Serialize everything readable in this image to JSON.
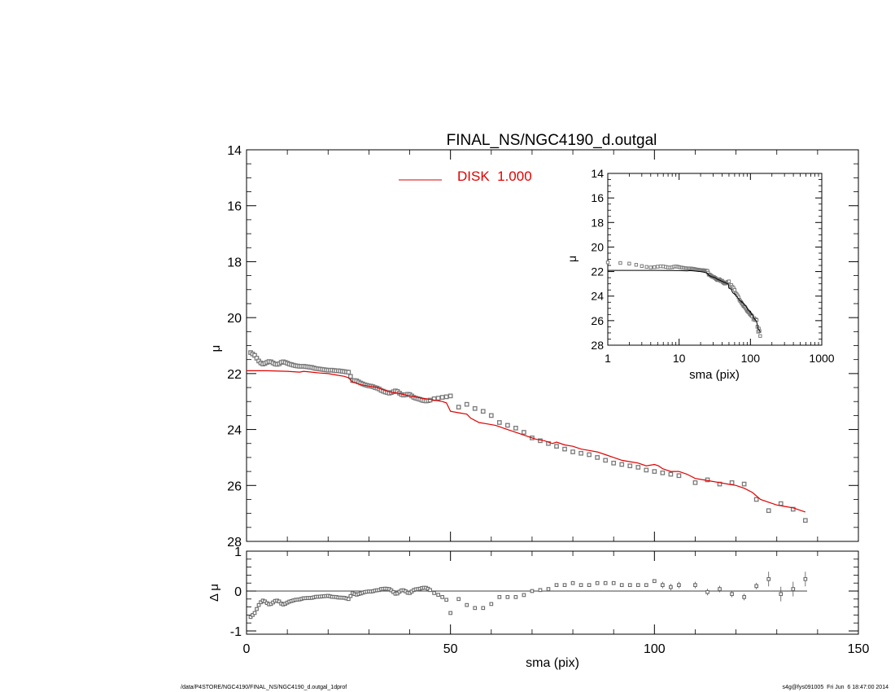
{
  "chart_data": [
    {
      "panel": "main",
      "type": "scatter",
      "title": "FINAL_NS/NGC4190_d.outgal",
      "ylabel": "μ",
      "xlim": [
        0,
        150
      ],
      "ylim": [
        28,
        14
      ],
      "yticks": [
        "14",
        "16",
        "18",
        "20",
        "22",
        "24",
        "26",
        "28"
      ],
      "legend": {
        "label": "DISK  1.000",
        "position": "top-center",
        "color": "#e00000"
      },
      "series": [
        {
          "kind": "points",
          "marker": "square",
          "color": "#7a7a7a",
          "x": [
            1,
            1.5,
            2,
            2.5,
            3,
            3.5,
            4,
            4.5,
            5,
            5.5,
            6,
            6.5,
            7,
            7.5,
            8,
            8.5,
            9,
            9.5,
            10,
            10.5,
            11,
            11.5,
            12,
            12.5,
            13,
            13.5,
            14,
            14.5,
            15,
            15.5,
            16,
            16.5,
            17,
            17.5,
            18,
            18.5,
            19,
            19.5,
            20,
            20.5,
            21,
            21.5,
            22,
            22.5,
            23,
            23.5,
            24,
            24.5,
            25,
            25.5,
            26,
            26.5,
            27,
            27.5,
            28,
            28.5,
            29,
            29.5,
            30,
            30.5,
            31,
            31.5,
            32,
            32.5,
            33,
            33.5,
            34,
            34.5,
            35,
            35.5,
            36,
            36.5,
            37,
            37.5,
            38,
            38.5,
            39,
            39.5,
            40,
            40.5,
            41,
            41.5,
            42,
            42.5,
            43,
            43.5,
            44,
            44.5,
            45,
            46,
            47,
            48,
            49,
            50,
            52,
            54,
            56,
            58,
            60,
            62,
            64,
            66,
            68,
            70,
            72,
            74,
            76,
            78,
            80,
            82,
            84,
            86,
            88,
            90,
            92,
            94,
            96,
            98,
            100,
            102,
            104,
            106,
            110,
            113,
            116,
            119,
            122,
            125,
            128,
            131,
            134,
            137
          ],
          "y": [
            21.25,
            21.3,
            21.35,
            21.45,
            21.55,
            21.62,
            21.66,
            21.64,
            21.6,
            21.57,
            21.58,
            21.62,
            21.66,
            21.67,
            21.65,
            21.6,
            21.58,
            21.6,
            21.63,
            21.66,
            21.68,
            21.7,
            21.72,
            21.73,
            21.74,
            21.74,
            21.74,
            21.75,
            21.76,
            21.77,
            21.78,
            21.8,
            21.82,
            21.83,
            21.84,
            21.85,
            21.86,
            21.87,
            21.88,
            21.88,
            21.88,
            21.89,
            21.9,
            21.9,
            21.91,
            21.92,
            21.93,
            21.94,
            21.95,
            22.1,
            22.25,
            22.25,
            22.26,
            22.3,
            22.34,
            22.37,
            22.4,
            22.42,
            22.44,
            22.45,
            22.47,
            22.5,
            22.52,
            22.55,
            22.6,
            22.63,
            22.66,
            22.68,
            22.7,
            22.68,
            22.65,
            22.62,
            22.64,
            22.7,
            22.75,
            22.77,
            22.76,
            22.74,
            22.75,
            22.8,
            22.85,
            22.88,
            22.9,
            22.92,
            22.95,
            22.97,
            22.98,
            22.97,
            22.95,
            22.9,
            22.88,
            22.85,
            22.83,
            22.8,
            23.2,
            23.1,
            23.25,
            23.35,
            23.5,
            23.75,
            23.85,
            23.95,
            24.1,
            24.3,
            24.4,
            24.5,
            24.6,
            24.7,
            24.8,
            24.85,
            24.9,
            25.0,
            25.1,
            25.2,
            25.25,
            25.3,
            25.35,
            25.45,
            25.5,
            25.55,
            25.6,
            25.65,
            25.9,
            25.8,
            25.95,
            25.9,
            25.95,
            26.5,
            26.9,
            26.65,
            26.85,
            27.25
          ]
        },
        {
          "kind": "line",
          "name": "DISK  1.000",
          "color": "#e00000",
          "x": [
            0,
            5,
            10,
            13,
            14,
            16,
            18,
            20,
            22,
            24,
            25,
            26,
            27,
            28,
            30,
            32,
            33,
            35,
            37,
            40,
            42,
            44,
            46,
            48,
            49,
            50,
            52,
            54,
            55,
            57,
            59,
            61,
            62,
            63,
            65,
            67,
            69,
            71,
            73,
            75,
            76,
            78,
            80,
            82,
            84,
            86,
            88,
            90,
            92,
            94,
            96,
            98,
            100,
            101,
            102,
            103,
            104,
            106,
            108,
            110,
            112,
            114,
            116,
            118,
            120,
            122,
            124,
            126,
            128,
            130,
            132,
            134,
            137
          ],
          "y": [
            21.9,
            21.9,
            21.92,
            21.95,
            21.92,
            21.95,
            21.98,
            22.0,
            22.05,
            22.1,
            22.15,
            22.3,
            22.35,
            22.4,
            22.45,
            22.5,
            22.55,
            22.65,
            22.7,
            22.8,
            22.85,
            22.9,
            22.95,
            23.0,
            23.05,
            23.35,
            23.4,
            23.45,
            23.6,
            23.75,
            23.8,
            23.85,
            23.9,
            23.95,
            24.05,
            24.15,
            24.25,
            24.35,
            24.4,
            24.5,
            24.45,
            24.55,
            24.6,
            24.7,
            24.75,
            24.8,
            24.9,
            25.0,
            25.1,
            25.15,
            25.2,
            25.3,
            25.25,
            25.3,
            25.4,
            25.45,
            25.5,
            25.5,
            25.6,
            25.75,
            25.8,
            25.85,
            25.9,
            25.95,
            26.0,
            26.1,
            26.25,
            26.5,
            26.6,
            26.7,
            26.75,
            26.8,
            26.95
          ]
        }
      ]
    },
    {
      "panel": "inset",
      "type": "scatter",
      "xlabel": "sma (pix)",
      "ylabel": "μ",
      "xscale": "log",
      "xlim": [
        1,
        1000
      ],
      "ylim": [
        28,
        14
      ],
      "xticks": [
        "1",
        "10",
        "100",
        "1000"
      ],
      "yticks": [
        "14",
        "16",
        "18",
        "20",
        "22",
        "24",
        "26",
        "28"
      ],
      "series": [
        {
          "kind": "points",
          "marker": "square",
          "color": "#7a7a7a",
          "source": "main.points"
        },
        {
          "kind": "line",
          "color": "#000000",
          "source": "main.line"
        }
      ]
    },
    {
      "panel": "residual",
      "type": "scatter",
      "xlabel": "sma (pix)",
      "ylabel": "Δ μ",
      "xlim": [
        0,
        150
      ],
      "ylim": [
        -1,
        1
      ],
      "xticks": [
        "0",
        "50",
        "100",
        "150"
      ],
      "yticks": [
        "1",
        "0",
        "-1"
      ],
      "series": [
        {
          "kind": "points",
          "marker": "square-errorbar",
          "color": "#7a7a7a",
          "derived": "points minus line"
        }
      ]
    }
  ],
  "footer": {
    "left": "/data/P4STORE/NGC4190/FINAL_NS/NGC4190_d.outgal_1dprof",
    "right": "s4g@fys091005  Fri Jun  6 18:47:00 2014"
  }
}
